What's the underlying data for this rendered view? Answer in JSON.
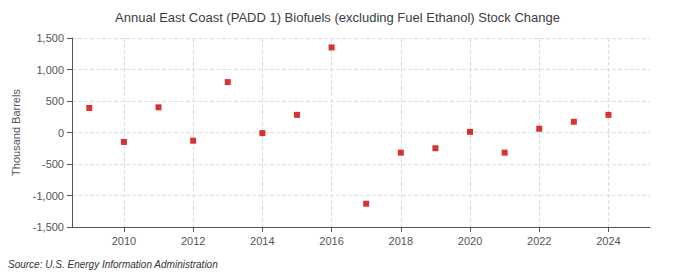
{
  "chart_data": {
    "type": "scatter",
    "title": "Annual East Coast (PADD 1) Biofuels (excluding Fuel Ethanol) Stock Change",
    "ylabel": "Thousand Barrels",
    "source": "Source: U.S. Energy Information Administration",
    "x": [
      2009,
      2010,
      2011,
      2012,
      2013,
      2014,
      2015,
      2016,
      2017,
      2018,
      2019,
      2020,
      2021,
      2022,
      2023,
      2024
    ],
    "values": [
      390,
      -150,
      400,
      -130,
      800,
      -10,
      280,
      1350,
      -1130,
      -320,
      -250,
      10,
      -320,
      60,
      170,
      280
    ],
    "color": "#cc0000",
    "marker": "square",
    "xlim": [
      2008.5,
      2025.2
    ],
    "xticks": [
      2010,
      2012,
      2014,
      2016,
      2018,
      2020,
      2022,
      2024
    ],
    "ylim": [
      -1500,
      1500
    ],
    "yticks": [
      {
        "value": -1500,
        "label": "-1,500"
      },
      {
        "value": -1000,
        "label": "-1,000"
      },
      -500,
      0,
      500,
      {
        "value": 1000,
        "label": "1,000"
      },
      {
        "value": 1500,
        "label": "1,500"
      }
    ],
    "grid": true
  }
}
